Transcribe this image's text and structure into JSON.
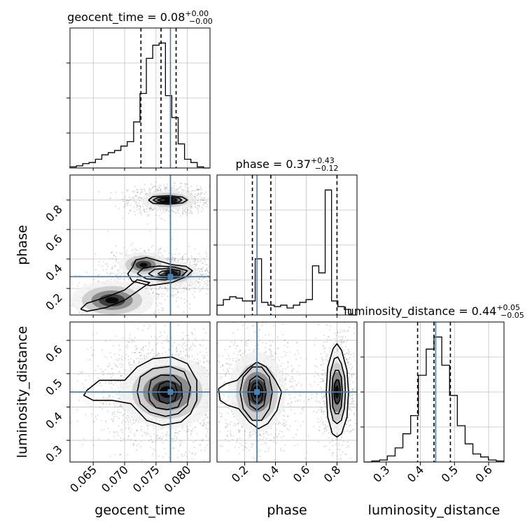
{
  "chart_data": {
    "type": "corner",
    "parameters": [
      {
        "name": "geocent_time",
        "xlim": [
          0.0613,
          0.0836
        ],
        "ticks": [
          0.065,
          0.07,
          0.075,
          0.08
        ],
        "tick_labels": [
          "0.065",
          "0.070",
          "0.075",
          "0.080"
        ],
        "truth": 0.0773,
        "title": {
          "main": "geocent_time = 0.08",
          "plus": "+0.00",
          "minus": "−0.00"
        },
        "quantiles": [
          0.0726,
          0.0758,
          0.0782
        ],
        "hist_bins": [
          0.0613,
          0.0836
        ],
        "hist": [
          1,
          2,
          4,
          5,
          8,
          12,
          14,
          16,
          20,
          24,
          42,
          68,
          100,
          112,
          114,
          66,
          46,
          22,
          8,
          5,
          1,
          0
        ]
      },
      {
        "name": "phase",
        "xlim": [
          0.02,
          0.93
        ],
        "ticks": [
          0.2,
          0.4,
          0.6,
          0.8
        ],
        "tick_labels": [
          "0.2",
          "0.4",
          "0.6",
          "0.8"
        ],
        "truth": 0.28,
        "title": {
          "main": "phase = 0.37",
          "plus": "+0.43",
          "minus": "−0.12"
        },
        "quantiles": [
          0.25,
          0.37,
          0.8
        ],
        "hist": [
          14,
          22,
          26,
          24,
          20,
          20,
          80,
          18,
          14,
          12,
          14,
          10,
          14,
          18,
          22,
          70,
          60,
          178,
          20,
          12,
          8,
          0
        ]
      },
      {
        "name": "luminosity_distance",
        "xlim": [
          0.235,
          0.645
        ],
        "ticks": [
          0.3,
          0.4,
          0.5,
          0.6
        ],
        "tick_labels": [
          "0.3",
          "0.4",
          "0.5",
          "0.6"
        ],
        "truth": 0.445,
        "title": {
          "main": "luminosity_distance = 0.44",
          "plus": "+0.05",
          "minus": "−0.05"
        },
        "quantiles": [
          0.392,
          0.44,
          0.488
        ],
        "hist": [
          0,
          1,
          2,
          6,
          14,
          28,
          46,
          86,
          112,
          124,
          96,
          66,
          36,
          18,
          8,
          5,
          2,
          1
        ]
      }
    ],
    "y_ranges": {
      "phase": [
        0.02,
        0.97
      ],
      "luminosity_distance": [
        0.235,
        0.655
      ]
    },
    "y_ticks": {
      "phase": {
        "values": [
          0.2,
          0.4,
          0.6,
          0.8
        ],
        "labels": [
          "0.2",
          "0.4",
          "0.6",
          "0.8"
        ]
      },
      "luminosity_distance": {
        "values": [
          0.3,
          0.4,
          0.5,
          0.6
        ],
        "labels": [
          "0.3",
          "0.4",
          "0.5",
          "0.6"
        ]
      }
    },
    "blobs_2d": {
      "geocent_time-phase": [
        {
          "x": 0.077,
          "y": 0.8,
          "sx": 0.002,
          "sy": 0.03,
          "n": 900
        },
        {
          "x": 0.0772,
          "y": 0.3,
          "sx": 0.0022,
          "sy": 0.04,
          "n": 1100
        },
        {
          "x": 0.073,
          "y": 0.36,
          "sx": 0.0018,
          "sy": 0.04,
          "n": 300
        },
        {
          "x": 0.068,
          "y": 0.12,
          "sx": 0.003,
          "sy": 0.06,
          "n": 350
        }
      ],
      "geocent_time-luminosity_distance": [
        {
          "x": 0.0768,
          "y": 0.445,
          "sx": 0.0035,
          "sy": 0.05,
          "n": 2200
        }
      ],
      "phase-luminosity_distance": [
        {
          "x": 0.28,
          "y": 0.445,
          "sx": 0.085,
          "sy": 0.055,
          "n": 1200
        },
        {
          "x": 0.8,
          "y": 0.445,
          "sx": 0.035,
          "sy": 0.055,
          "n": 900
        }
      ]
    },
    "contours_2d": {
      "geocent_time-phase": [
        [
          [
            0.0738,
            0.8
          ],
          [
            0.0745,
            0.823
          ],
          [
            0.077,
            0.83
          ],
          [
            0.0792,
            0.821
          ],
          [
            0.08,
            0.8
          ],
          [
            0.0792,
            0.78
          ],
          [
            0.077,
            0.772
          ],
          [
            0.0745,
            0.778
          ],
          [
            0.0738,
            0.8
          ]
        ],
        [
          [
            0.0745,
            0.8
          ],
          [
            0.0752,
            0.816
          ],
          [
            0.077,
            0.82
          ],
          [
            0.0786,
            0.814
          ],
          [
            0.0791,
            0.8
          ],
          [
            0.0786,
            0.787
          ],
          [
            0.077,
            0.781
          ],
          [
            0.0752,
            0.785
          ],
          [
            0.0745,
            0.8
          ]
        ],
        [
          [
            0.0752,
            0.8
          ],
          [
            0.076,
            0.81
          ],
          [
            0.0775,
            0.811
          ],
          [
            0.0784,
            0.8
          ],
          [
            0.0775,
            0.79
          ],
          [
            0.076,
            0.79
          ],
          [
            0.0752,
            0.8
          ]
        ],
        [
          [
            0.0712,
            0.34
          ],
          [
            0.0718,
            0.395
          ],
          [
            0.0735,
            0.41
          ],
          [
            0.0752,
            0.39
          ],
          [
            0.0775,
            0.362
          ],
          [
            0.0798,
            0.35
          ],
          [
            0.0808,
            0.32
          ],
          [
            0.0798,
            0.28
          ],
          [
            0.0775,
            0.24
          ],
          [
            0.074,
            0.22
          ],
          [
            0.0712,
            0.25
          ],
          [
            0.0705,
            0.3
          ],
          [
            0.0712,
            0.34
          ]
        ],
        [
          [
            0.072,
            0.3
          ],
          [
            0.073,
            0.34
          ],
          [
            0.0755,
            0.352
          ],
          [
            0.078,
            0.345
          ],
          [
            0.08,
            0.32
          ],
          [
            0.079,
            0.28
          ],
          [
            0.0765,
            0.258
          ],
          [
            0.0735,
            0.265
          ],
          [
            0.072,
            0.3
          ]
        ],
        [
          [
            0.0738,
            0.3
          ],
          [
            0.0748,
            0.33
          ],
          [
            0.077,
            0.336
          ],
          [
            0.0788,
            0.32
          ],
          [
            0.0788,
            0.29
          ],
          [
            0.077,
            0.272
          ],
          [
            0.0748,
            0.278
          ],
          [
            0.0738,
            0.3
          ]
        ],
        [
          [
            0.0753,
            0.3
          ],
          [
            0.076,
            0.318
          ],
          [
            0.0775,
            0.322
          ],
          [
            0.0784,
            0.3
          ],
          [
            0.0775,
            0.285
          ],
          [
            0.076,
            0.284
          ],
          [
            0.0753,
            0.3
          ]
        ],
        [
          [
            0.063,
            0.06
          ],
          [
            0.064,
            0.1
          ],
          [
            0.067,
            0.14
          ],
          [
            0.07,
            0.19
          ],
          [
            0.072,
            0.26
          ],
          [
            0.074,
            0.24
          ],
          [
            0.072,
            0.18
          ],
          [
            0.07,
            0.12
          ],
          [
            0.067,
            0.07
          ],
          [
            0.064,
            0.045
          ],
          [
            0.063,
            0.06
          ]
        ]
      ],
      "geocent_time-luminosity_distance": [
        [
          [
            0.064,
            0.45
          ],
          [
            0.066,
            0.48
          ],
          [
            0.07,
            0.48
          ],
          [
            0.072,
            0.52
          ],
          [
            0.0745,
            0.545
          ],
          [
            0.0775,
            0.55
          ],
          [
            0.08,
            0.53
          ],
          [
            0.0815,
            0.48
          ],
          [
            0.0815,
            0.42
          ],
          [
            0.0805,
            0.38
          ],
          [
            0.079,
            0.355
          ],
          [
            0.076,
            0.345
          ],
          [
            0.0735,
            0.36
          ],
          [
            0.071,
            0.41
          ],
          [
            0.068,
            0.42
          ],
          [
            0.065,
            0.42
          ],
          [
            0.0635,
            0.435
          ],
          [
            0.064,
            0.45
          ]
        ],
        [
          [
            0.072,
            0.445
          ],
          [
            0.0725,
            0.49
          ],
          [
            0.0745,
            0.515
          ],
          [
            0.0772,
            0.522
          ],
          [
            0.0795,
            0.505
          ],
          [
            0.0805,
            0.46
          ],
          [
            0.08,
            0.405
          ],
          [
            0.0785,
            0.38
          ],
          [
            0.0765,
            0.372
          ],
          [
            0.074,
            0.385
          ],
          [
            0.0725,
            0.41
          ],
          [
            0.072,
            0.445
          ]
        ],
        [
          [
            0.0738,
            0.445
          ],
          [
            0.0742,
            0.48
          ],
          [
            0.0758,
            0.496
          ],
          [
            0.0778,
            0.494
          ],
          [
            0.079,
            0.47
          ],
          [
            0.0792,
            0.43
          ],
          [
            0.0785,
            0.4
          ],
          [
            0.0768,
            0.392
          ],
          [
            0.075,
            0.398
          ],
          [
            0.074,
            0.42
          ],
          [
            0.0738,
            0.445
          ]
        ],
        [
          [
            0.0752,
            0.445
          ],
          [
            0.0756,
            0.468
          ],
          [
            0.0768,
            0.478
          ],
          [
            0.078,
            0.47
          ],
          [
            0.0784,
            0.445
          ],
          [
            0.078,
            0.42
          ],
          [
            0.0768,
            0.41
          ],
          [
            0.0756,
            0.418
          ],
          [
            0.0752,
            0.445
          ]
        ]
      ],
      "phase-luminosity_distance": [
        [
          [
            0.03,
            0.455
          ],
          [
            0.08,
            0.47
          ],
          [
            0.15,
            0.48
          ],
          [
            0.22,
            0.515
          ],
          [
            0.28,
            0.535
          ],
          [
            0.34,
            0.52
          ],
          [
            0.4,
            0.48
          ],
          [
            0.44,
            0.445
          ],
          [
            0.41,
            0.39
          ],
          [
            0.35,
            0.35
          ],
          [
            0.29,
            0.335
          ],
          [
            0.23,
            0.355
          ],
          [
            0.16,
            0.395
          ],
          [
            0.09,
            0.405
          ],
          [
            0.04,
            0.42
          ],
          [
            0.03,
            0.455
          ]
        ],
        [
          [
            0.17,
            0.445
          ],
          [
            0.19,
            0.49
          ],
          [
            0.25,
            0.52
          ],
          [
            0.31,
            0.52
          ],
          [
            0.36,
            0.49
          ],
          [
            0.38,
            0.445
          ],
          [
            0.36,
            0.395
          ],
          [
            0.31,
            0.36
          ],
          [
            0.25,
            0.36
          ],
          [
            0.19,
            0.395
          ],
          [
            0.17,
            0.445
          ]
        ],
        [
          [
            0.22,
            0.445
          ],
          [
            0.235,
            0.48
          ],
          [
            0.28,
            0.495
          ],
          [
            0.325,
            0.48
          ],
          [
            0.34,
            0.445
          ],
          [
            0.325,
            0.405
          ],
          [
            0.28,
            0.39
          ],
          [
            0.235,
            0.405
          ],
          [
            0.22,
            0.445
          ]
        ],
        [
          [
            0.24,
            0.445
          ],
          [
            0.255,
            0.468
          ],
          [
            0.285,
            0.475
          ],
          [
            0.31,
            0.462
          ],
          [
            0.318,
            0.445
          ],
          [
            0.31,
            0.42
          ],
          [
            0.285,
            0.41
          ],
          [
            0.255,
            0.42
          ],
          [
            0.24,
            0.445
          ]
        ],
        [
          [
            0.73,
            0.445
          ],
          [
            0.74,
            0.52
          ],
          [
            0.775,
            0.575
          ],
          [
            0.8,
            0.59
          ],
          [
            0.83,
            0.57
          ],
          [
            0.865,
            0.51
          ],
          [
            0.875,
            0.445
          ],
          [
            0.865,
            0.37
          ],
          [
            0.83,
            0.32
          ],
          [
            0.8,
            0.31
          ],
          [
            0.77,
            0.32
          ],
          [
            0.74,
            0.37
          ],
          [
            0.73,
            0.445
          ]
        ],
        [
          [
            0.75,
            0.445
          ],
          [
            0.758,
            0.505
          ],
          [
            0.782,
            0.545
          ],
          [
            0.805,
            0.55
          ],
          [
            0.828,
            0.53
          ],
          [
            0.85,
            0.49
          ],
          [
            0.855,
            0.445
          ],
          [
            0.848,
            0.395
          ],
          [
            0.828,
            0.36
          ],
          [
            0.8,
            0.35
          ],
          [
            0.775,
            0.36
          ],
          [
            0.757,
            0.395
          ],
          [
            0.75,
            0.445
          ]
        ],
        [
          [
            0.768,
            0.445
          ],
          [
            0.772,
            0.488
          ],
          [
            0.79,
            0.51
          ],
          [
            0.81,
            0.51
          ],
          [
            0.828,
            0.49
          ],
          [
            0.835,
            0.445
          ],
          [
            0.828,
            0.4
          ],
          [
            0.81,
            0.38
          ],
          [
            0.79,
            0.38
          ],
          [
            0.772,
            0.4
          ],
          [
            0.768,
            0.445
          ]
        ],
        [
          [
            0.782,
            0.445
          ],
          [
            0.785,
            0.47
          ],
          [
            0.798,
            0.482
          ],
          [
            0.812,
            0.48
          ],
          [
            0.82,
            0.46
          ],
          [
            0.822,
            0.445
          ],
          [
            0.818,
            0.42
          ],
          [
            0.805,
            0.41
          ],
          [
            0.792,
            0.412
          ],
          [
            0.784,
            0.425
          ],
          [
            0.782,
            0.445
          ]
        ]
      ]
    },
    "colors": {
      "truth": "#4682b4",
      "hist": "#000000",
      "grid": "#c0c0c0",
      "scatter": "#808080"
    },
    "grid": true
  }
}
